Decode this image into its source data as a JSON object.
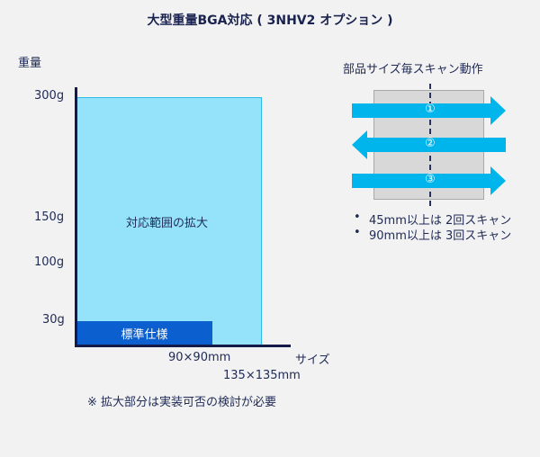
{
  "title": "大型重量BGA対応 ( 3NHV2 オプション )",
  "chart": {
    "y_axis_label": "重量",
    "x_axis_label": "サイズ",
    "y_ticks": [
      "300g",
      "150g",
      "100g",
      "30g"
    ],
    "expanded_region_label": "対応範囲の拡大",
    "standard_region_label": "標準仕様",
    "x_tick_standard": "90×90mm",
    "x_tick_expanded": "135×135mm"
  },
  "note": "※ 拡大部分は実装可否の検討が必要",
  "scan": {
    "title": "部品サイズ毎スキャン動作",
    "passes": [
      "①",
      "②",
      "③"
    ],
    "rules": [
      "45mm以上は 2回スキャン",
      "90mm以上は 3回スキャン"
    ],
    "bullet": "•"
  },
  "colors": {
    "expanded": "#95e3fb",
    "standard": "#0b5fcf",
    "arrow": "#00b4ec",
    "text": "#1f2a55"
  }
}
